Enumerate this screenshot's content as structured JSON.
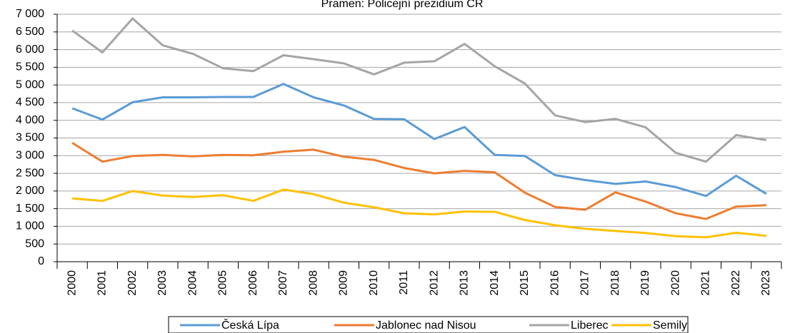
{
  "chart_data": {
    "type": "line",
    "title": "Pramen: Policejní prezidium ČR",
    "categories": [
      "2000",
      "2001",
      "2002",
      "2003",
      "2004",
      "2005",
      "2006",
      "2007",
      "2008",
      "2009",
      "2010",
      "2011",
      "2012",
      "2013",
      "2014",
      "2015",
      "2016",
      "2017",
      "2018",
      "2019",
      "2020",
      "2021",
      "2022",
      "2023"
    ],
    "series": [
      {
        "name": "Česká Lípa",
        "color": "#5b9bd5",
        "values": [
          4340,
          4020,
          4510,
          4650,
          4650,
          4660,
          4660,
          5030,
          4650,
          4420,
          4040,
          4030,
          3470,
          3810,
          3020,
          2990,
          2450,
          2310,
          2200,
          2270,
          2110,
          1860,
          2430,
          1920
        ]
      },
      {
        "name": "Jablonec nad Nisou",
        "color": "#ed7d31",
        "values": [
          3360,
          2830,
          2990,
          3020,
          2980,
          3020,
          3010,
          3110,
          3170,
          2970,
          2880,
          2650,
          2500,
          2570,
          2530,
          1950,
          1550,
          1470,
          1960,
          1700,
          1370,
          1210,
          1560,
          1600
        ]
      },
      {
        "name": "Liberec",
        "color": "#a5a5a5",
        "values": [
          6540,
          5920,
          6880,
          6120,
          5880,
          5470,
          5390,
          5840,
          5730,
          5610,
          5300,
          5630,
          5670,
          6160,
          5530,
          5040,
          4140,
          3950,
          4040,
          3800,
          3080,
          2830,
          3580,
          3440
        ]
      },
      {
        "name": "Semily",
        "color": "#ffc000",
        "values": [
          1790,
          1720,
          2000,
          1870,
          1830,
          1880,
          1720,
          2040,
          1910,
          1670,
          1540,
          1370,
          1340,
          1420,
          1410,
          1180,
          1030,
          930,
          870,
          810,
          720,
          690,
          820,
          730
        ]
      }
    ],
    "ylim": [
      0,
      7000
    ],
    "yticks": [
      0,
      500,
      {
        "value": 1000,
        "label": "1 000"
      },
      {
        "value": 1500,
        "label": "1 500"
      },
      {
        "value": 2000,
        "label": "2 000"
      },
      {
        "value": 2500,
        "label": "2 500"
      },
      {
        "value": 3000,
        "label": "3 000"
      },
      {
        "value": 3500,
        "label": "3 500"
      },
      {
        "value": 4000,
        "label": "4 000"
      },
      {
        "value": 4500,
        "label": "4 500"
      },
      {
        "value": 5000,
        "label": "5 000"
      },
      {
        "value": 5500,
        "label": "5 500"
      },
      {
        "value": 6000,
        "label": "6 000"
      },
      {
        "value": 6500,
        "label": "6 500"
      },
      {
        "value": 7000,
        "label": "7 000"
      }
    ],
    "grid": true,
    "legend": "bottom"
  }
}
